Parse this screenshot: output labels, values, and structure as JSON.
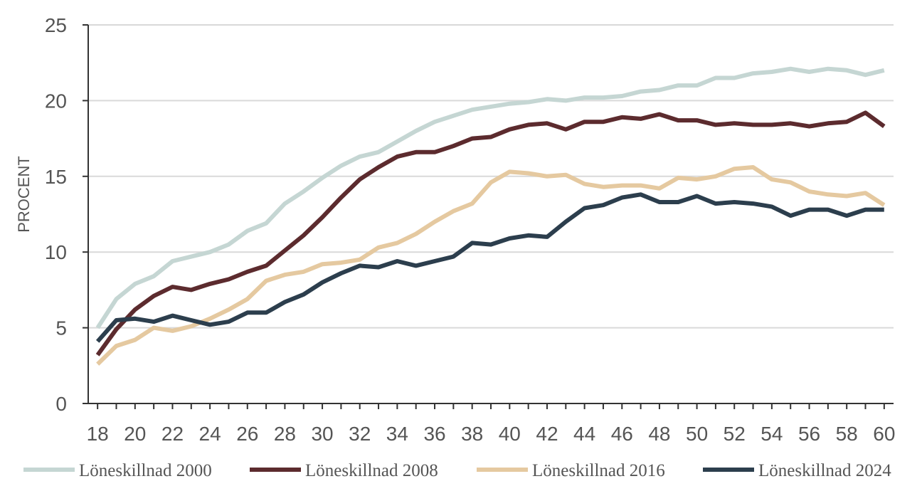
{
  "chart_data": {
    "type": "line",
    "title": "",
    "xlabel": "",
    "ylabel": "PROCENT",
    "x": [
      18,
      19,
      20,
      21,
      22,
      23,
      24,
      25,
      26,
      27,
      28,
      29,
      30,
      31,
      32,
      33,
      34,
      35,
      36,
      37,
      38,
      39,
      40,
      41,
      42,
      43,
      44,
      45,
      46,
      47,
      48,
      49,
      50,
      51,
      52,
      53,
      54,
      55,
      56,
      57,
      58,
      59,
      60
    ],
    "xticks": [
      18,
      20,
      22,
      24,
      26,
      28,
      30,
      32,
      34,
      36,
      38,
      40,
      42,
      44,
      46,
      48,
      50,
      52,
      54,
      56,
      58,
      60
    ],
    "xlim": [
      17.5,
      60.5
    ],
    "ylim": [
      0,
      25
    ],
    "yticks": [
      0,
      5,
      10,
      15,
      20,
      25
    ],
    "grid": true,
    "legend_position": "bottom",
    "series": [
      {
        "name": "Löneskillnad 2000",
        "color": "#c5d6d3",
        "values": [
          5.0,
          6.9,
          7.9,
          8.4,
          9.4,
          9.7,
          10.0,
          10.5,
          11.4,
          11.9,
          13.2,
          14.0,
          14.9,
          15.7,
          16.3,
          16.6,
          17.3,
          18.0,
          18.6,
          19.0,
          19.4,
          19.6,
          19.8,
          19.9,
          20.1,
          20.0,
          20.2,
          20.2,
          20.3,
          20.6,
          20.7,
          21.0,
          21.0,
          21.5,
          21.5,
          21.8,
          21.9,
          22.1,
          21.9,
          22.1,
          22.0,
          21.7,
          22.0
        ]
      },
      {
        "name": "Löneskillnad 2008",
        "color": "#5c2b2e",
        "values": [
          3.2,
          4.9,
          6.2,
          7.1,
          7.7,
          7.5,
          7.9,
          8.2,
          8.7,
          9.1,
          10.1,
          11.1,
          12.3,
          13.6,
          14.8,
          15.6,
          16.3,
          16.6,
          16.6,
          17.0,
          17.5,
          17.6,
          18.1,
          18.4,
          18.5,
          18.1,
          18.6,
          18.6,
          18.9,
          18.8,
          19.1,
          18.7,
          18.7,
          18.4,
          18.5,
          18.4,
          18.4,
          18.5,
          18.3,
          18.5,
          18.6,
          19.2,
          18.3
        ]
      },
      {
        "name": "Löneskillnad 2016",
        "color": "#e5c9a0",
        "values": [
          2.6,
          3.8,
          4.2,
          5.0,
          4.8,
          5.1,
          5.6,
          6.2,
          6.9,
          8.1,
          8.5,
          8.7,
          9.2,
          9.3,
          9.5,
          10.3,
          10.6,
          11.2,
          12.0,
          12.7,
          13.2,
          14.6,
          15.3,
          15.2,
          15.0,
          15.1,
          14.5,
          14.3,
          14.4,
          14.4,
          14.2,
          14.9,
          14.8,
          15.0,
          15.5,
          15.6,
          14.8,
          14.6,
          14.0,
          13.8,
          13.7,
          13.9,
          13.1
        ]
      },
      {
        "name": "Löneskillnad 2024",
        "color": "#2c3e4d",
        "values": [
          4.1,
          5.5,
          5.6,
          5.4,
          5.8,
          5.5,
          5.2,
          5.4,
          6.0,
          6.0,
          6.7,
          7.2,
          8.0,
          8.6,
          9.1,
          9.0,
          9.4,
          9.1,
          9.4,
          9.7,
          10.6,
          10.5,
          10.9,
          11.1,
          11.0,
          12.0,
          12.9,
          13.1,
          13.6,
          13.8,
          13.3,
          13.3,
          13.7,
          13.2,
          13.3,
          13.2,
          13.0,
          12.4,
          12.8,
          12.8,
          12.4,
          12.8,
          12.8
        ]
      }
    ]
  }
}
